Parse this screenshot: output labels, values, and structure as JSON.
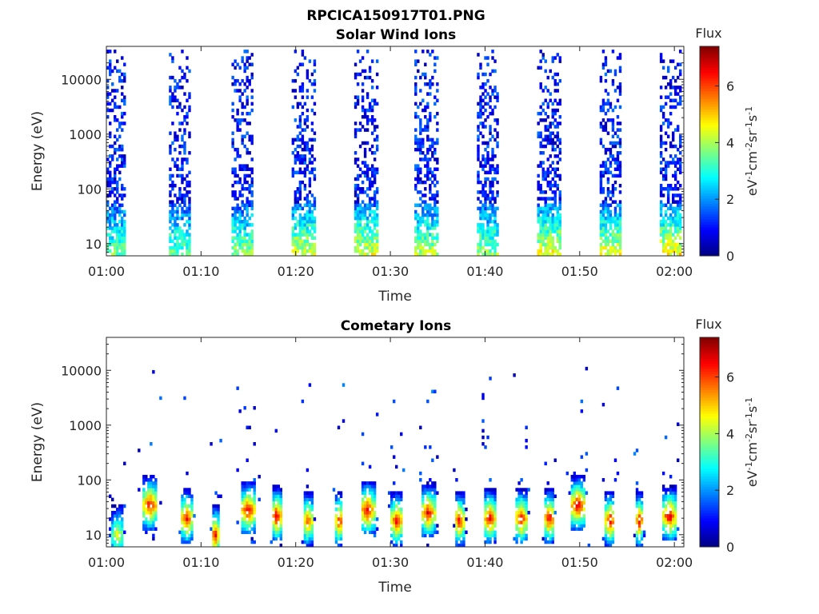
{
  "figure_title": "RPCICA150917T01.PNG",
  "chart_data": [
    {
      "type": "heatmap",
      "title": "Solar Wind Ions",
      "xlabel": "Time",
      "ylabel": "Energy (eV)",
      "x_ticks": [
        "01:00",
        "01:10",
        "01:20",
        "01:30",
        "01:40",
        "01:50",
        "02:00"
      ],
      "x_range_minutes": [
        0,
        61
      ],
      "y_scale": "log",
      "y_ticks": [
        10,
        100,
        1000,
        10000
      ],
      "y_range": [
        6,
        40000
      ],
      "colorbar": {
        "label": "Flux",
        "unit": "eV⁻¹cm⁻²sr⁻¹s⁻¹",
        "ticks": [
          0,
          2,
          4,
          6
        ],
        "range": [
          0,
          7.4
        ],
        "colormap": "jet"
      },
      "bursts": [
        {
          "center_min": 1.0,
          "width_min": 2.3,
          "peak_energy_ev": 15,
          "max_energy_ev": 35000,
          "density": 0.62,
          "low_level": 2.2
        },
        {
          "center_min": 7.7,
          "width_min": 2.3,
          "peak_energy_ev": 15,
          "max_energy_ev": 35000,
          "density": 0.62,
          "low_level": 2.2
        },
        {
          "center_min": 14.3,
          "width_min": 2.4,
          "peak_energy_ev": 15,
          "max_energy_ev": 35000,
          "density": 0.62,
          "low_level": 2.4
        },
        {
          "center_min": 20.8,
          "width_min": 2.4,
          "peak_energy_ev": 15,
          "max_energy_ev": 35000,
          "density": 0.62,
          "low_level": 2.8
        },
        {
          "center_min": 27.4,
          "width_min": 2.4,
          "peak_energy_ev": 15,
          "max_energy_ev": 35000,
          "density": 0.62,
          "low_level": 2.9
        },
        {
          "center_min": 33.8,
          "width_min": 2.3,
          "peak_energy_ev": 15,
          "max_energy_ev": 35000,
          "density": 0.62,
          "low_level": 2.6
        },
        {
          "center_min": 40.3,
          "width_min": 2.3,
          "peak_energy_ev": 15,
          "max_energy_ev": 35000,
          "density": 0.62,
          "low_level": 2.4
        },
        {
          "center_min": 46.8,
          "width_min": 2.4,
          "peak_energy_ev": 15,
          "max_energy_ev": 35000,
          "density": 0.62,
          "low_level": 3.0
        },
        {
          "center_min": 53.3,
          "width_min": 2.3,
          "peak_energy_ev": 15,
          "max_energy_ev": 35000,
          "density": 0.62,
          "low_level": 2.9
        },
        {
          "center_min": 59.6,
          "width_min": 2.4,
          "peak_energy_ev": 15,
          "max_energy_ev": 35000,
          "density": 0.62,
          "low_level": 3.1
        }
      ]
    },
    {
      "type": "heatmap",
      "title": "Cometary Ions",
      "xlabel": "Time",
      "ylabel": "Energy (eV)",
      "x_ticks": [
        "01:00",
        "01:10",
        "01:20",
        "01:30",
        "01:40",
        "01:50",
        "02:00"
      ],
      "x_range_minutes": [
        0,
        61
      ],
      "y_scale": "log",
      "y_ticks": [
        10,
        100,
        1000,
        10000
      ],
      "y_range": [
        6,
        40000
      ],
      "colorbar": {
        "label": "Flux",
        "unit": "eV⁻¹cm⁻²sr⁻¹s⁻¹",
        "ticks": [
          0,
          2,
          4,
          6
        ],
        "range": [
          0,
          7.4
        ],
        "colormap": "jet"
      },
      "bursts": [
        {
          "center_min": 1.2,
          "width_min": 1.2,
          "peak_energy_ev": 10,
          "peak_level": 4.5
        },
        {
          "center_min": 4.6,
          "width_min": 1.6,
          "peak_energy_ev": 35,
          "peak_level": 6.5
        },
        {
          "center_min": 8.5,
          "width_min": 1.3,
          "peak_energy_ev": 20,
          "peak_level": 6.4
        },
        {
          "center_min": 11.5,
          "width_min": 0.8,
          "peak_energy_ev": 10,
          "peak_level": 6.6
        },
        {
          "center_min": 15.0,
          "width_min": 1.6,
          "peak_energy_ev": 28,
          "peak_level": 6.5
        },
        {
          "center_min": 18.0,
          "width_min": 1.1,
          "peak_energy_ev": 22,
          "peak_level": 6.7
        },
        {
          "center_min": 21.3,
          "width_min": 1.0,
          "peak_energy_ev": 18,
          "peak_level": 6.0
        },
        {
          "center_min": 24.6,
          "width_min": 0.8,
          "peak_energy_ev": 18,
          "peak_level": 6.4
        },
        {
          "center_min": 27.6,
          "width_min": 1.5,
          "peak_energy_ev": 28,
          "peak_level": 6.6
        },
        {
          "center_min": 30.7,
          "width_min": 1.2,
          "peak_energy_ev": 18,
          "peak_level": 6.6
        },
        {
          "center_min": 34.0,
          "width_min": 1.4,
          "peak_energy_ev": 25,
          "peak_level": 6.5
        },
        {
          "center_min": 37.3,
          "width_min": 1.0,
          "peak_energy_ev": 18,
          "peak_level": 6.5
        },
        {
          "center_min": 40.5,
          "width_min": 1.2,
          "peak_energy_ev": 20,
          "peak_level": 6.6
        },
        {
          "center_min": 43.8,
          "width_min": 1.2,
          "peak_energy_ev": 20,
          "peak_level": 6.7
        },
        {
          "center_min": 46.8,
          "width_min": 1.2,
          "peak_energy_ev": 20,
          "peak_level": 6.6
        },
        {
          "center_min": 49.8,
          "width_min": 1.7,
          "peak_energy_ev": 35,
          "peak_level": 6.7
        },
        {
          "center_min": 53.2,
          "width_min": 1.1,
          "peak_energy_ev": 18,
          "peak_level": 6.6
        },
        {
          "center_min": 56.3,
          "width_min": 0.8,
          "peak_energy_ev": 18,
          "peak_level": 6.6
        },
        {
          "center_min": 59.5,
          "width_min": 1.4,
          "peak_energy_ev": 22,
          "peak_level": 6.8
        }
      ]
    }
  ]
}
